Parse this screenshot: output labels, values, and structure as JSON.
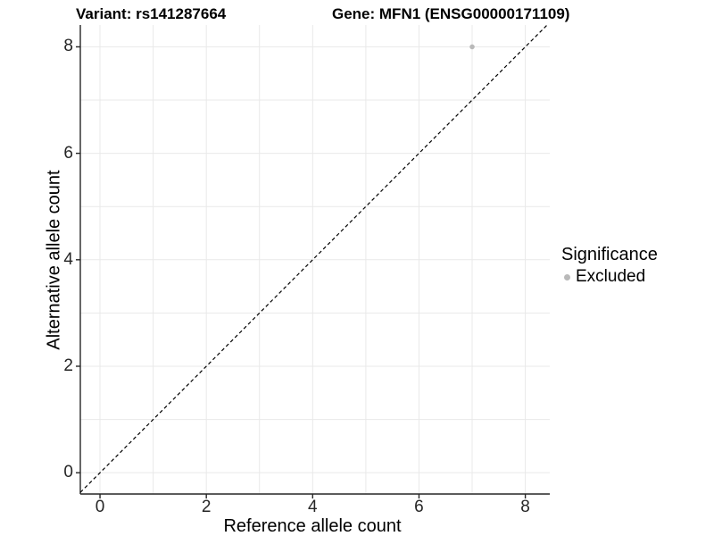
{
  "titles": {
    "left": "Variant: rs141287664",
    "right": "Gene: MFN1 (ENSG00000171109)"
  },
  "chart_data": {
    "type": "scatter",
    "title_left": "Variant: rs141287664",
    "title_right": "Gene: MFN1 (ENSG00000171109)",
    "xlabel": "Reference allele count",
    "ylabel": "Alternative allele count",
    "xlim": [
      -0.37,
      8.46
    ],
    "ylim": [
      -0.4,
      8.41
    ],
    "x_ticks": [
      {
        "value": 0,
        "label": "0"
      },
      {
        "value": 2,
        "label": "2"
      },
      {
        "value": 4,
        "label": "4"
      },
      {
        "value": 6,
        "label": "6"
      },
      {
        "value": 8,
        "label": "8"
      }
    ],
    "y_ticks": [
      {
        "value": 0,
        "label": "0"
      },
      {
        "value": 2,
        "label": "2"
      },
      {
        "value": 4,
        "label": "4"
      },
      {
        "value": 6,
        "label": "6"
      },
      {
        "value": 8,
        "label": "8"
      }
    ],
    "x_grid": [
      0,
      1,
      2,
      3,
      4,
      5,
      6,
      7,
      8
    ],
    "y_grid": [
      0,
      1,
      2,
      3,
      4,
      5,
      6,
      7,
      8
    ],
    "grid": true,
    "legend_position": "right",
    "series": [
      {
        "name": "Excluded",
        "color": "#b9b9b9",
        "points": [
          {
            "x": 7,
            "y": 8
          }
        ]
      }
    ],
    "reference_line": {
      "type": "identity",
      "equation": "y = x",
      "style": "dashed",
      "color": "#000000"
    }
  },
  "legend": {
    "title": "Significance",
    "items": [
      {
        "label": "Excluded",
        "color": "#b9b9b9",
        "marker": "circle-icon"
      }
    ]
  },
  "colors": {
    "background": "#ffffff",
    "grid": "#e9e9e9",
    "axis": "#262626",
    "tick_text": "#262626",
    "point": "#b9b9b9",
    "dashed_line": "#000000"
  }
}
